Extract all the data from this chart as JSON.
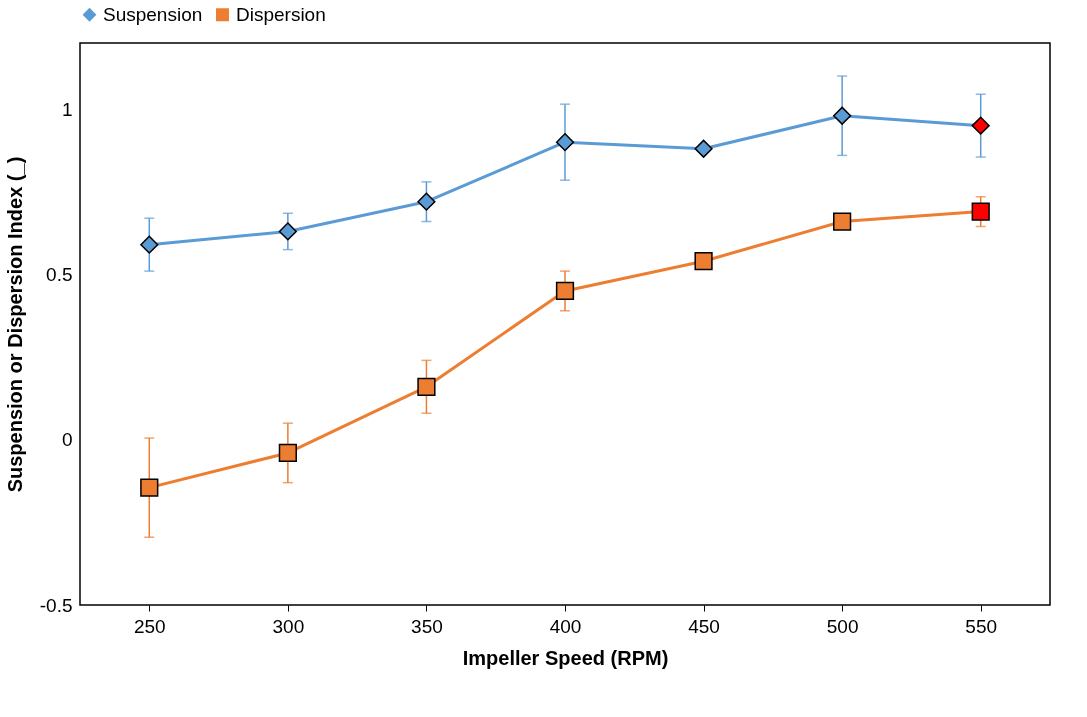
{
  "chart_data": {
    "type": "line",
    "xlabel": "Impeller Speed (RPM)",
    "ylabel": "Suspension or Dispersion Index (_)",
    "x": [
      250,
      300,
      350,
      400,
      450,
      500,
      550
    ],
    "series": [
      {
        "name": "Suspension",
        "color": "#5b9bd5",
        "marker": "diamond",
        "colors": [
          "#5b9bd5",
          "#5b9bd5",
          "#5b9bd5",
          "#5b9bd5",
          "#5b9bd5",
          "#5b9bd5",
          "#ff0000"
        ],
        "values": [
          0.59,
          0.63,
          0.72,
          0.9,
          0.88,
          0.98,
          0.95
        ],
        "errors": [
          0.08,
          0.055,
          0.06,
          0.115,
          null,
          0.12,
          0.095
        ]
      },
      {
        "name": "Dispersion",
        "color": "#ed7d31",
        "marker": "square",
        "colors": [
          "#ed7d31",
          "#ed7d31",
          "#ed7d31",
          "#ed7d31",
          "#ed7d31",
          "#ed7d31",
          "#ff0000"
        ],
        "values": [
          -0.145,
          -0.04,
          0.16,
          0.45,
          0.54,
          0.66,
          0.69
        ],
        "errors": [
          0.15,
          0.09,
          0.08,
          0.06,
          0.01,
          null,
          0.045
        ]
      }
    ],
    "xlim": [
      225,
      575
    ],
    "xticks": [
      250,
      300,
      350,
      400,
      450,
      500,
      550
    ],
    "ylim": [
      -0.5,
      1.2
    ],
    "yticks": [
      -0.5,
      0,
      0.5,
      1
    ],
    "grid": false,
    "legend": "top"
  }
}
